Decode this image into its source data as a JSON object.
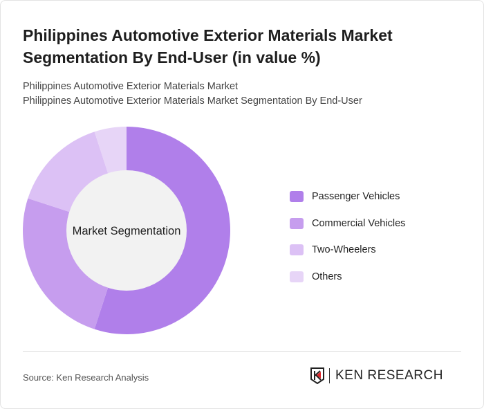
{
  "title": "Philippines Automotive Exterior Materials Market Segmentation By End-User (in value %)",
  "subtitle_lines": [
    "Philippines Automotive Exterior Materials Market",
    "Philippines Automotive Exterior Materials Market Segmentation By End-User"
  ],
  "chart_data": {
    "type": "pie",
    "variant": "donut",
    "center_label": "Market Segmentation",
    "categories": [
      "Passenger Vehicles",
      "Commercial Vehicles",
      "Two-Wheelers",
      "Others"
    ],
    "values": [
      55,
      25,
      15,
      5
    ],
    "colors": [
      "#b07fea",
      "#c69dee",
      "#dcc1f5",
      "#e7d5f7"
    ],
    "legend_position": "right"
  },
  "footer": {
    "source": "Source: Ken Research Analysis",
    "logo": "KEN RESEARCH"
  }
}
